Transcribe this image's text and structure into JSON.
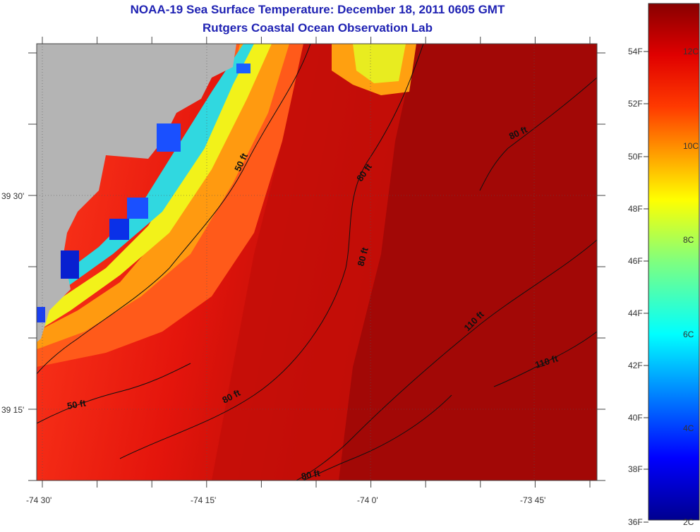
{
  "title": "NOAA-19 Sea Surface Temperature:  December 18, 2011 0605 GMT",
  "subtitle": "Rutgers Coastal Ocean Observation Lab",
  "lon_labels": [
    "-74 30'",
    "-74 15'",
    "-74 0'",
    "-73 45'"
  ],
  "lat_labels": [
    "39 30'",
    "39 15'"
  ],
  "contour_labels": [
    "50 ft",
    "80 ft",
    "80 ft",
    "80 ft",
    "110 ft",
    "110 ft",
    "80 ft",
    "50 ft",
    "80 ft"
  ],
  "colorbar": {
    "f_labels": [
      "54F",
      "52F",
      "50F",
      "48F",
      "46F",
      "44F",
      "42F",
      "40F",
      "38F",
      "36F"
    ],
    "c_labels": [
      "12C",
      "10C",
      "8C",
      "6C",
      "4C",
      "2C"
    ]
  },
  "colors": {
    "title": "#1f22b3",
    "land": "#b4b4b4",
    "ocean_warm": "#a50a08"
  }
}
